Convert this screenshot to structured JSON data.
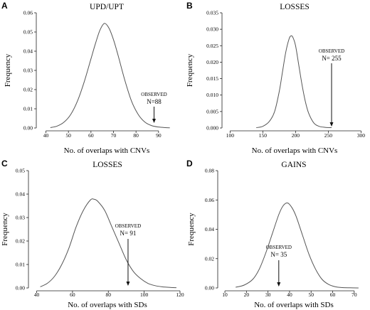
{
  "chart_data": [
    {
      "id": "A",
      "type": "line",
      "panel_letter": "A",
      "title": "UPD/UPT",
      "xlabel": "No. of overlaps with CNVs",
      "ylabel": "Frequency",
      "xlim": [
        37,
        97
      ],
      "ylim": [
        0,
        0.06
      ],
      "xticks": [
        40,
        50,
        60,
        70,
        80,
        90
      ],
      "yticks": [
        0.0,
        0.01,
        0.02,
        0.03,
        0.04,
        0.05,
        0.06
      ],
      "ytick_labels": [
        "0.00",
        "0.01",
        "0.02",
        "0.03",
        "0.04",
        "0.05",
        "0.06"
      ],
      "series": [
        {
          "x": [
            42,
            45,
            48,
            51,
            54,
            57,
            60,
            62,
            64,
            66,
            68,
            70,
            72,
            75,
            78,
            81,
            84,
            87,
            90,
            93,
            95
          ],
          "y": [
            0.0002,
            0.001,
            0.003,
            0.007,
            0.014,
            0.024,
            0.036,
            0.044,
            0.051,
            0.0545,
            0.052,
            0.046,
            0.038,
            0.025,
            0.014,
            0.007,
            0.003,
            0.0012,
            0.0005,
            0.0002,
            0.0001
          ]
        }
      ],
      "annotation": {
        "label": "OBSERVED",
        "n_label": "N=88",
        "x": 88
      }
    },
    {
      "id": "B",
      "type": "line",
      "panel_letter": "B",
      "title": "LOSSES",
      "xlabel": "No. of overlaps with CNVs",
      "ylabel": "Frequency",
      "xlim": [
        92,
        305
      ],
      "ylim": [
        0,
        0.035
      ],
      "xticks": [
        100,
        150,
        200,
        250,
        300
      ],
      "yticks": [
        0.0,
        0.005,
        0.01,
        0.015,
        0.02,
        0.025,
        0.03,
        0.035
      ],
      "ytick_labels": [
        "0.000",
        "0.005",
        "0.010",
        "0.015",
        "0.020",
        "0.025",
        "0.030",
        "0.035"
      ],
      "series": [
        {
          "x": [
            140,
            150,
            160,
            168,
            175,
            180,
            185,
            190,
            193,
            196,
            200,
            205,
            210,
            215,
            220,
            228,
            236,
            245,
            255
          ],
          "y": [
            0.0001,
            0.0005,
            0.002,
            0.005,
            0.011,
            0.017,
            0.023,
            0.027,
            0.028,
            0.0275,
            0.025,
            0.019,
            0.013,
            0.008,
            0.0045,
            0.0015,
            0.0005,
            0.0002,
            0.0001
          ]
        }
      ],
      "annotation": {
        "label": "OBSERVED",
        "n_label": "N= 255",
        "x": 255
      }
    },
    {
      "id": "C",
      "type": "line",
      "panel_letter": "C",
      "title": "LOSSES",
      "xlabel": "No. of overlaps with SDs",
      "ylabel": "Frequency",
      "xlim": [
        37,
        122
      ],
      "ylim": [
        0,
        0.05
      ],
      "xticks": [
        40,
        60,
        80,
        100,
        120
      ],
      "yticks": [
        0.0,
        0.01,
        0.02,
        0.03,
        0.04,
        0.05
      ],
      "ytick_labels": [
        "0.00",
        "0.01",
        "0.02",
        "0.03",
        "0.04",
        "0.05"
      ],
      "series": [
        {
          "x": [
            42,
            46,
            50,
            54,
            58,
            62,
            66,
            70,
            72,
            74,
            78,
            82,
            86,
            90,
            94,
            98,
            102,
            106,
            110,
            115,
            118
          ],
          "y": [
            0.0005,
            0.002,
            0.005,
            0.01,
            0.017,
            0.026,
            0.033,
            0.0375,
            0.0378,
            0.037,
            0.033,
            0.026,
            0.019,
            0.012,
            0.007,
            0.004,
            0.002,
            0.001,
            0.0005,
            0.0002,
            0.0001
          ]
        }
      ],
      "annotation": {
        "label": "OBSERVED",
        "n_label": "N= 91",
        "x": 91
      }
    },
    {
      "id": "D",
      "type": "line",
      "panel_letter": "D",
      "title": "GAINS",
      "xlabel": "No. of overlaps with SDs",
      "ylabel": "Frequency",
      "xlim": [
        8,
        76
      ],
      "ylim": [
        0,
        0.08
      ],
      "xticks": [
        10,
        20,
        30,
        40,
        50,
        60,
        70
      ],
      "yticks": [
        0.0,
        0.02,
        0.04,
        0.06,
        0.08
      ],
      "ytick_labels": [
        "0.00",
        "0.02",
        "0.04",
        "0.06",
        "0.08"
      ],
      "series": [
        {
          "x": [
            15,
            19,
            23,
            26,
            29,
            32,
            35,
            37,
            39,
            41,
            43,
            46,
            49,
            52,
            55,
            58,
            61,
            64,
            68,
            72
          ],
          "y": [
            0.0005,
            0.002,
            0.006,
            0.013,
            0.024,
            0.037,
            0.05,
            0.056,
            0.058,
            0.055,
            0.049,
            0.036,
            0.023,
            0.013,
            0.006,
            0.0025,
            0.0009,
            0.0003,
            0.0001,
            0.0
          ]
        }
      ],
      "annotation": {
        "label": "OBSERVED",
        "n_label": "N= 35",
        "x": 35
      }
    }
  ]
}
